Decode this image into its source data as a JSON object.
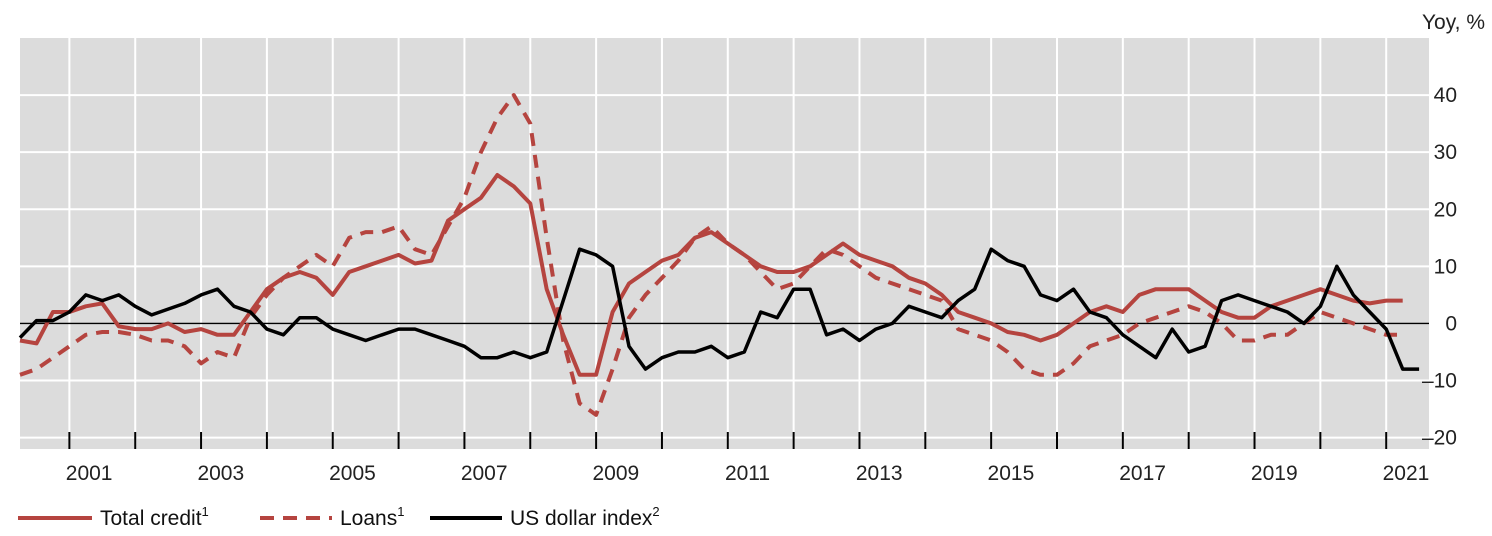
{
  "chart_data": {
    "type": "line",
    "unit_label": "Yoy, %",
    "x_tick_labels": [
      "2001",
      "2003",
      "2005",
      "2007",
      "2009",
      "2011",
      "2013",
      "2015",
      "2017",
      "2019",
      "2021"
    ],
    "x_range": [
      2000.0,
      2021.4
    ],
    "x_ticks": [
      2000.75,
      2001.75,
      2002.75,
      2003.75,
      2004.75,
      2005.75,
      2006.75,
      2007.75,
      2008.75,
      2009.75,
      2010.75,
      2011.75,
      2012.75,
      2013.75,
      2014.75,
      2015.75,
      2016.75,
      2017.75,
      2018.75,
      2019.75,
      2020.75
    ],
    "x_label_positions": [
      2001.05,
      2003.05,
      2005.05,
      2007.05,
      2009.05,
      2011.05,
      2013.05,
      2015.05,
      2017.05,
      2019.05,
      2021.05
    ],
    "y_range": [
      -22,
      50
    ],
    "y_ticks": [
      -20,
      -10,
      0,
      10,
      20,
      30,
      40
    ],
    "y_axis_side": "right",
    "grid": true,
    "zero_line": true,
    "legend_position": "bottom",
    "colors": {
      "total_credit": "#b5443f",
      "loans": "#b5443f",
      "usd_index": "#000000",
      "plot_bg": "#dcdcdc",
      "grid": "#ffffff"
    },
    "series": [
      {
        "name": "Total credit",
        "footnote": "1",
        "style": "solid",
        "x": [
          2000.0,
          2000.25,
          2000.5,
          2000.75,
          2001.0,
          2001.25,
          2001.5,
          2001.75,
          2002.0,
          2002.25,
          2002.5,
          2002.75,
          2003.0,
          2003.25,
          2003.5,
          2003.75,
          2004.0,
          2004.25,
          2004.5,
          2004.75,
          2005.0,
          2005.25,
          2005.5,
          2005.75,
          2006.0,
          2006.25,
          2006.5,
          2006.75,
          2007.0,
          2007.25,
          2007.5,
          2007.75,
          2008.0,
          2008.25,
          2008.5,
          2008.75,
          2009.0,
          2009.25,
          2009.5,
          2009.75,
          2010.0,
          2010.25,
          2010.5,
          2010.75,
          2011.0,
          2011.25,
          2011.5,
          2011.75,
          2012.0,
          2012.25,
          2012.5,
          2012.75,
          2013.0,
          2013.25,
          2013.5,
          2013.75,
          2014.0,
          2014.25,
          2014.5,
          2014.75,
          2015.0,
          2015.25,
          2015.5,
          2015.75,
          2016.0,
          2016.25,
          2016.5,
          2016.75,
          2017.0,
          2017.25,
          2017.5,
          2017.75,
          2018.0,
          2018.25,
          2018.5,
          2018.75,
          2019.0,
          2019.25,
          2019.5,
          2019.75,
          2020.0,
          2020.25,
          2020.5,
          2020.75,
          2021.0
        ],
        "y": [
          -3,
          -3.5,
          2,
          2,
          3,
          3.5,
          -0.5,
          -1,
          -1,
          0,
          -1.5,
          -1,
          -2,
          -2,
          2,
          6,
          8,
          9,
          8,
          5,
          9,
          10,
          11,
          12,
          10.5,
          11,
          18,
          20,
          22,
          26,
          24,
          21,
          6,
          -2,
          -9,
          -9,
          2,
          7,
          9,
          11,
          12,
          15,
          16,
          14,
          12,
          10,
          9,
          9,
          10,
          12,
          14,
          12,
          11,
          10,
          8,
          7,
          5,
          2,
          1,
          0,
          -1.5,
          -2,
          -3,
          -2,
          0,
          2,
          3,
          2,
          5,
          6,
          6,
          6,
          4,
          2,
          1,
          1,
          3,
          4,
          5,
          6,
          5,
          4,
          3.5,
          4,
          4
        ]
      },
      {
        "name": "Loans",
        "footnote": "1",
        "style": "dashed",
        "x": [
          2000.0,
          2000.25,
          2000.5,
          2000.75,
          2001.0,
          2001.25,
          2001.5,
          2001.75,
          2002.0,
          2002.25,
          2002.5,
          2002.75,
          2003.0,
          2003.25,
          2003.5,
          2003.75,
          2004.0,
          2004.25,
          2004.5,
          2004.75,
          2005.0,
          2005.25,
          2005.5,
          2005.75,
          2006.0,
          2006.25,
          2006.5,
          2006.75,
          2007.0,
          2007.25,
          2007.5,
          2007.75,
          2008.0,
          2008.25,
          2008.5,
          2008.75,
          2009.0,
          2009.25,
          2009.5,
          2009.75,
          2010.0,
          2010.25,
          2010.5,
          2010.75,
          2011.0,
          2011.25,
          2011.5,
          2011.75,
          2012.0,
          2012.25,
          2012.5,
          2012.75,
          2013.0,
          2013.25,
          2013.5,
          2013.75,
          2014.0,
          2014.25,
          2014.5,
          2014.75,
          2015.0,
          2015.25,
          2015.5,
          2015.75,
          2016.0,
          2016.25,
          2016.5,
          2016.75,
          2017.0,
          2017.25,
          2017.5,
          2017.75,
          2018.0,
          2018.25,
          2018.5,
          2018.75,
          2019.0,
          2019.25,
          2019.5,
          2019.75,
          2020.0,
          2020.25,
          2020.5,
          2020.75,
          2021.0
        ],
        "y": [
          -9,
          -8,
          -6,
          -4,
          -2,
          -1.5,
          -1.5,
          -2,
          -3,
          -3,
          -4,
          -7,
          -5,
          -6,
          1,
          5,
          8,
          10,
          12,
          10,
          15,
          16,
          16,
          17,
          13,
          12,
          17,
          22,
          30,
          36,
          40,
          35,
          15,
          -3,
          -14,
          -16,
          -8,
          1,
          5,
          8,
          11,
          15,
          17,
          14,
          12,
          9,
          6,
          7,
          10,
          13,
          12,
          10,
          8,
          7,
          6,
          5,
          4,
          -1,
          -2,
          -3,
          -5,
          -8,
          -9,
          -9,
          -7,
          -4,
          -3,
          -2,
          0,
          1,
          2,
          3,
          2,
          0,
          -3,
          -3,
          -2,
          -2,
          0,
          2,
          1,
          0,
          -1,
          -2,
          -2
        ]
      },
      {
        "name": "US dollar index",
        "footnote": "2",
        "style": "solid",
        "x": [
          2000.0,
          2000.25,
          2000.5,
          2000.75,
          2001.0,
          2001.25,
          2001.5,
          2001.75,
          2002.0,
          2002.25,
          2002.5,
          2002.75,
          2003.0,
          2003.25,
          2003.5,
          2003.75,
          2004.0,
          2004.25,
          2004.5,
          2004.75,
          2005.0,
          2005.25,
          2005.5,
          2005.75,
          2006.0,
          2006.25,
          2006.5,
          2006.75,
          2007.0,
          2007.25,
          2007.5,
          2007.75,
          2008.0,
          2008.25,
          2008.5,
          2008.75,
          2009.0,
          2009.25,
          2009.5,
          2009.75,
          2010.0,
          2010.25,
          2010.5,
          2010.75,
          2011.0,
          2011.25,
          2011.5,
          2011.75,
          2012.0,
          2012.25,
          2012.5,
          2012.75,
          2013.0,
          2013.25,
          2013.5,
          2013.75,
          2014.0,
          2014.25,
          2014.5,
          2014.75,
          2015.0,
          2015.25,
          2015.5,
          2015.75,
          2016.0,
          2016.25,
          2016.5,
          2016.75,
          2017.0,
          2017.25,
          2017.5,
          2017.75,
          2018.0,
          2018.25,
          2018.5,
          2018.75,
          2019.0,
          2019.25,
          2019.5,
          2019.75,
          2020.0,
          2020.25,
          2020.5,
          2020.75,
          2021.0,
          2021.25
        ],
        "y": [
          -2.5,
          0.5,
          0.5,
          2,
          5,
          4,
          5,
          3,
          1.5,
          2.5,
          3.5,
          5,
          6,
          3,
          2,
          -1,
          -2,
          1,
          1,
          -1,
          -2,
          -3,
          -2,
          -1,
          -1,
          -2,
          -3,
          -4,
          -6,
          -6,
          -5,
          -6,
          -5,
          4,
          13,
          12,
          10,
          -4,
          -8,
          -6,
          -5,
          -5,
          -4,
          -6,
          -5,
          2,
          1,
          6,
          6,
          -2,
          -1,
          -3,
          -1,
          0,
          3,
          2,
          1,
          4,
          6,
          13,
          11,
          10,
          5,
          4,
          6,
          2,
          1,
          -2,
          -4,
          -6,
          -1,
          -5,
          -4,
          4,
          5,
          4,
          3,
          2,
          0,
          3,
          10,
          5,
          2,
          -1,
          -8,
          -8
        ]
      }
    ]
  }
}
